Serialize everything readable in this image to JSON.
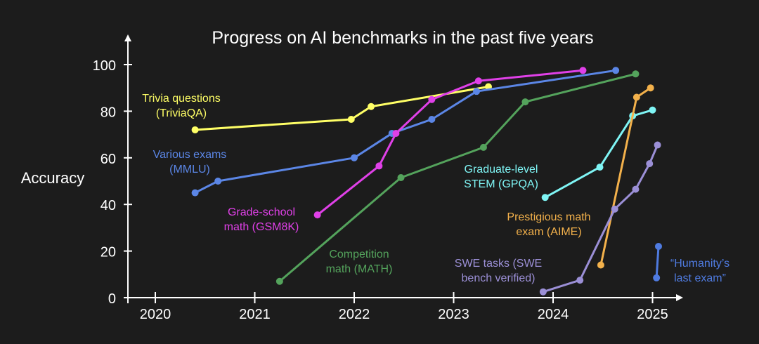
{
  "chart_data": {
    "type": "line",
    "title": "Progress on AI benchmarks in the past five years",
    "xlabel": "",
    "ylabel": "Accuracy",
    "xlim": [
      2019.7,
      2025.3
    ],
    "ylim": [
      0,
      100
    ],
    "x_ticks": [
      "2020",
      "2021",
      "2022",
      "2023",
      "2024",
      "2025"
    ],
    "y_ticks": [
      "0",
      "20",
      "40",
      "60",
      "80",
      "100"
    ],
    "grid": false,
    "legend": "none",
    "series": [
      {
        "name": "Trivia questions (TriviaQA)",
        "label_lines": [
          "Trivia questions",
          "(TriviaQA)"
        ],
        "color": "#ffff66",
        "points": [
          [
            2020.4,
            72
          ],
          [
            2021.97,
            76.5
          ],
          [
            2022.17,
            82
          ],
          [
            2023.35,
            90.5
          ]
        ]
      },
      {
        "name": "Various exams (MMLU)",
        "label_lines": [
          "Various exams",
          "(MMLU)"
        ],
        "color": "#5b86e6",
        "points": [
          [
            2020.4,
            45
          ],
          [
            2020.63,
            50
          ],
          [
            2022.0,
            60
          ],
          [
            2022.38,
            70.5
          ],
          [
            2022.78,
            76.5
          ],
          [
            2023.23,
            88.5
          ],
          [
            2024.63,
            97.5
          ]
        ]
      },
      {
        "name": "Grade-school math (GSM8K)",
        "label_lines": [
          "Grade-school",
          "math (GSM8K)"
        ],
        "color": "#e040e8",
        "points": [
          [
            2021.63,
            35.5
          ],
          [
            2022.25,
            56.5
          ],
          [
            2022.42,
            70.5
          ],
          [
            2022.78,
            85
          ],
          [
            2023.25,
            93
          ],
          [
            2024.3,
            97.5
          ]
        ]
      },
      {
        "name": "Competition math (MATH)",
        "label_lines": [
          "Competition",
          "math (MATH)"
        ],
        "color": "#54a35c",
        "points": [
          [
            2021.25,
            7
          ],
          [
            2022.47,
            51.5
          ],
          [
            2023.3,
            64.5
          ],
          [
            2023.72,
            84
          ],
          [
            2024.83,
            96
          ]
        ]
      },
      {
        "name": "Graduate-level STEM (GPQA)",
        "label_lines": [
          "Graduate-level",
          "STEM (GPQA)"
        ],
        "color": "#7ff5f5",
        "points": [
          [
            2023.92,
            43
          ],
          [
            2024.47,
            56
          ],
          [
            2024.8,
            78
          ],
          [
            2025.0,
            80.5
          ]
        ]
      },
      {
        "name": "Prestigious math exam (AIME)",
        "label_lines": [
          "Prestigious math",
          "exam (AIME)"
        ],
        "color": "#f3b14b",
        "points": [
          [
            2024.48,
            14
          ],
          [
            2024.84,
            86
          ],
          [
            2024.98,
            90
          ]
        ]
      },
      {
        "name": "SWE tasks (SWE bench verified)",
        "label_lines": [
          "SWE tasks (SWE",
          "bench verified)"
        ],
        "color": "#9b8fd6",
        "points": [
          [
            2023.9,
            2.5
          ],
          [
            2024.27,
            7.5
          ],
          [
            2024.62,
            38
          ],
          [
            2024.83,
            46.5
          ],
          [
            2024.97,
            57.5
          ],
          [
            2025.05,
            65.5
          ]
        ]
      },
      {
        "name": "“Humanity’s last exam”",
        "label_lines": [
          "“Humanity’s",
          "last exam”"
        ],
        "color": "#4f7be0",
        "points": [
          [
            2025.04,
            8.5
          ],
          [
            2025.06,
            22
          ]
        ]
      }
    ]
  }
}
